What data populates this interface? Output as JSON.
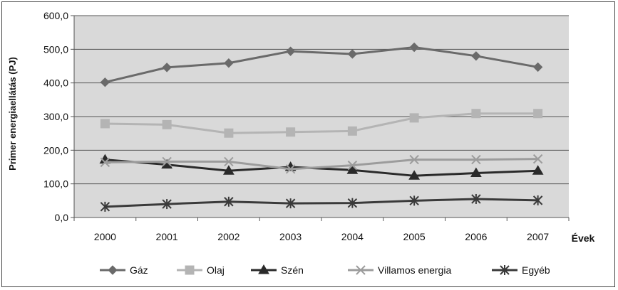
{
  "chart_data": {
    "type": "line",
    "ylabel": "Primer energiaellátás (PJ)",
    "xlabel": "Évek",
    "x": [
      "2000",
      "2001",
      "2002",
      "2003",
      "2004",
      "2005",
      "2006",
      "2007"
    ],
    "ylim": [
      0,
      600
    ],
    "yticks": [
      0,
      100,
      200,
      300,
      400,
      500,
      600
    ],
    "ytick_labels": [
      "0,0",
      "100,0",
      "200,0",
      "300,0",
      "400,0",
      "500,0",
      "600,0"
    ],
    "grid": true,
    "legend_position": "bottom",
    "series": [
      {
        "name": "Gáz",
        "marker": "diamond",
        "color": "#6a6a6a",
        "values": [
          402,
          446,
          459,
          494,
          486,
          506,
          480,
          447
        ]
      },
      {
        "name": "Olaj",
        "marker": "square",
        "color": "#b4b4b4",
        "values": [
          279,
          276,
          251,
          254,
          257,
          296,
          309,
          309
        ]
      },
      {
        "name": "Szén",
        "marker": "triangle",
        "color": "#2a2a2a",
        "values": [
          172,
          157,
          139,
          150,
          141,
          124,
          132,
          139
        ]
      },
      {
        "name": "Villamos energia",
        "marker": "x",
        "color": "#9c9c9c",
        "values": [
          164,
          166,
          166,
          144,
          155,
          172,
          172,
          174
        ]
      },
      {
        "name": "Egyéb",
        "marker": "star",
        "color": "#3a3a3a",
        "values": [
          32,
          40,
          47,
          42,
          43,
          50,
          55,
          51
        ]
      }
    ]
  }
}
